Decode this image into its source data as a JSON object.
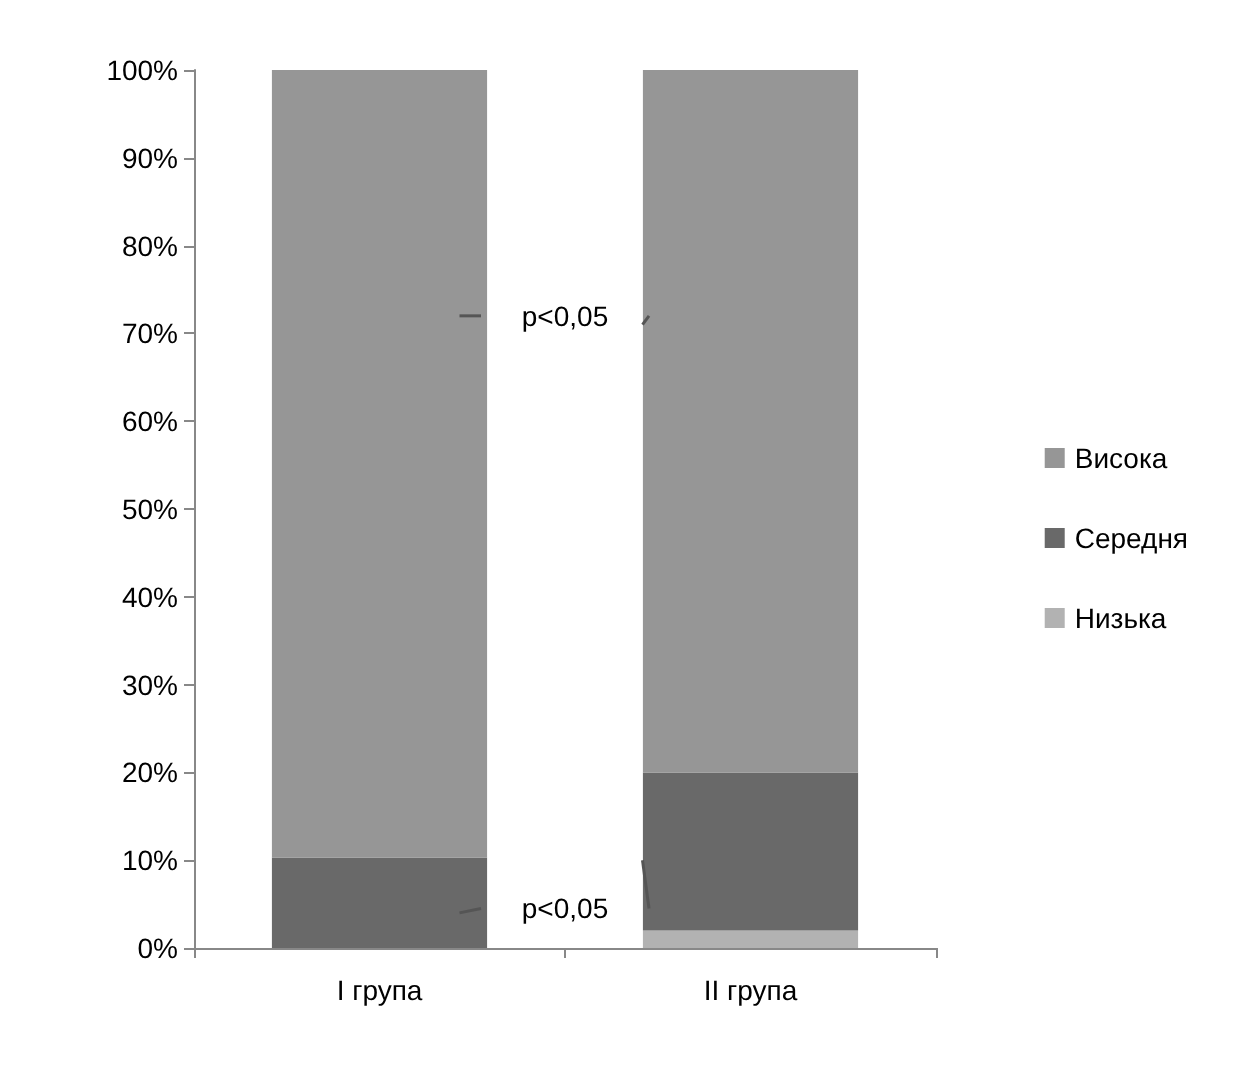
{
  "chart_data": {
    "type": "bar",
    "stacked": true,
    "categories": [
      "I група",
      "II група"
    ],
    "series": [
      {
        "name": "Низька",
        "color": "#b2b2b2",
        "values": [
          0,
          2
        ]
      },
      {
        "name": "Середня",
        "color": "#696969",
        "values": [
          10.3,
          18
        ]
      },
      {
        "name": "Висока",
        "color": "#969696",
        "values": [
          89.7,
          80
        ]
      }
    ],
    "ylim": [
      0,
      100
    ],
    "yticks": [
      {
        "value": 0,
        "label": "0%"
      },
      {
        "value": 10,
        "label": "10%"
      },
      {
        "value": 20,
        "label": "20%"
      },
      {
        "value": 30,
        "label": "30%"
      },
      {
        "value": 40,
        "label": "40%"
      },
      {
        "value": 50,
        "label": "50%"
      },
      {
        "value": 60,
        "label": "60%"
      },
      {
        "value": 70,
        "label": "70%"
      },
      {
        "value": 80,
        "label": "80%"
      },
      {
        "value": 90,
        "label": "90%"
      },
      {
        "value": 100,
        "label": "100%"
      }
    ],
    "grid": false,
    "legend": "right",
    "annotations": [
      "p<0,05",
      "p<0,05"
    ]
  }
}
